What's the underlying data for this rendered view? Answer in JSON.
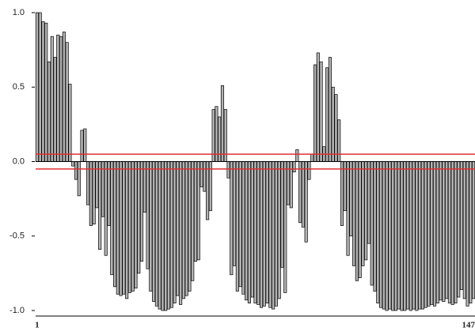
{
  "chart_data": {
    "type": "bar",
    "categories": [
      "1",
      null,
      null,
      null,
      null,
      null,
      null,
      null,
      null,
      null,
      null,
      null,
      null,
      null,
      null,
      null,
      null,
      null,
      null,
      null,
      null,
      null,
      null,
      null,
      null,
      null,
      null,
      null,
      null,
      null,
      null,
      null,
      null,
      null,
      null,
      null,
      null,
      null,
      null,
      null,
      null,
      null,
      null,
      null,
      null,
      null,
      null,
      null,
      null,
      null,
      null,
      null,
      null,
      null,
      null,
      null,
      null,
      null,
      null,
      null,
      null,
      null,
      null,
      null,
      null,
      null,
      null,
      null,
      null,
      null,
      null,
      null,
      null,
      null,
      null,
      null,
      null,
      null,
      null,
      null,
      null,
      null,
      null,
      null,
      null,
      null,
      null,
      null,
      null,
      null,
      null,
      null,
      null,
      null,
      null,
      null,
      null,
      null,
      null,
      null,
      null,
      null,
      null,
      null,
      null,
      null,
      null,
      null,
      null,
      null,
      null,
      null,
      null,
      null,
      null,
      null,
      null,
      null,
      null,
      null,
      null,
      null,
      null,
      null,
      null,
      null,
      null,
      null,
      null,
      null,
      null,
      null,
      null,
      null,
      null,
      null,
      null,
      null,
      null,
      null,
      null,
      null,
      null,
      null,
      null,
      null,
      "147"
    ],
    "values": [
      1.0,
      1.0,
      0.94,
      0.93,
      0.67,
      0.84,
      0.7,
      0.85,
      0.84,
      0.87,
      0.8,
      0.52,
      -0.03,
      -0.12,
      -0.23,
      0.21,
      0.22,
      -0.29,
      -0.43,
      -0.42,
      -0.31,
      -0.59,
      -0.37,
      -0.63,
      -0.43,
      -0.76,
      -0.84,
      -0.89,
      -0.9,
      -0.89,
      -0.92,
      -0.88,
      -0.87,
      -0.85,
      -0.75,
      -0.67,
      -0.34,
      -0.72,
      -0.87,
      -0.94,
      -0.97,
      -0.99,
      -1.0,
      -1.0,
      -0.99,
      -0.98,
      -0.95,
      -0.9,
      -0.96,
      -0.92,
      -0.9,
      -0.87,
      -0.8,
      -0.67,
      -0.66,
      -0.17,
      -0.2,
      -0.39,
      -0.33,
      0.35,
      0.37,
      0.3,
      0.51,
      0.35,
      -0.11,
      -0.76,
      -0.7,
      -0.87,
      -0.84,
      -0.89,
      -0.93,
      -0.95,
      -0.91,
      -0.95,
      -0.96,
      -0.98,
      -0.97,
      -0.95,
      -0.98,
      -0.99,
      -0.97,
      -0.92,
      -0.71,
      -0.88,
      -0.29,
      -0.31,
      -0.07,
      0.08,
      -0.41,
      -0.44,
      -0.54,
      -0.12,
      0.05,
      0.65,
      0.73,
      0.67,
      0.1,
      0.63,
      0.7,
      0.5,
      0.45,
      0.28,
      -0.43,
      -0.33,
      -0.63,
      -0.5,
      -0.7,
      -0.8,
      -0.78,
      -0.7,
      -0.66,
      -0.55,
      -0.83,
      -0.87,
      -0.95,
      -0.98,
      -0.99,
      -1.0,
      -0.99,
      -1.0,
      -1.0,
      -0.99,
      -1.0,
      -1.0,
      -0.99,
      -1.0,
      -0.99,
      -1.0,
      -0.99,
      -0.99,
      -0.98,
      -0.97,
      -0.96,
      -0.97,
      -0.95,
      -0.93,
      -0.94,
      -0.92,
      -0.95,
      -0.96,
      -0.95,
      -0.91,
      -0.86,
      -0.92,
      -0.97,
      -0.95,
      -0.92
    ],
    "color": "#b3b3b3",
    "ylim": [
      -1.0,
      1.0
    ],
    "yticks": [
      {
        "value": 1.0,
        "label": "1.0"
      },
      {
        "value": 0.5,
        "label": "0.5"
      },
      {
        "value": 0.0,
        "label": "0.0"
      },
      {
        "value": -0.5,
        "label": "-0.5"
      },
      {
        "value": -1.0,
        "label": "-1.0"
      }
    ],
    "threshold_lines": [
      0.05,
      -0.05
    ],
    "threshold_color": "#e03030",
    "grid": false
  }
}
